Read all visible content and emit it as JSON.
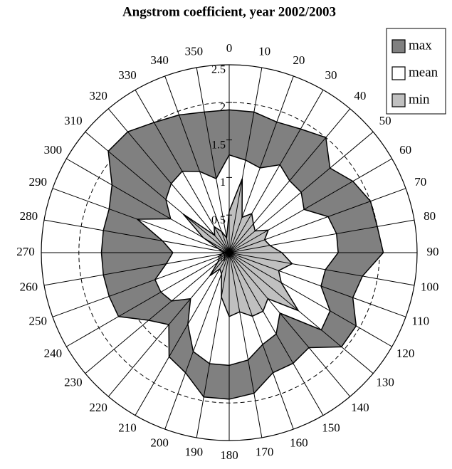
{
  "chart_data": {
    "type": "radar",
    "title": "Angstrom coefficient, year 2002/2003",
    "x": [
      0,
      10,
      20,
      30,
      40,
      50,
      60,
      70,
      80,
      90,
      100,
      110,
      120,
      130,
      140,
      150,
      160,
      170,
      180,
      190,
      200,
      210,
      220,
      230,
      240,
      250,
      260,
      270,
      280,
      290,
      300,
      310,
      320,
      330,
      340,
      350
    ],
    "series": [
      {
        "name": "max",
        "color": "#808080",
        "values": [
          1.9,
          1.9,
          1.85,
          1.9,
          2.0,
          1.75,
          1.9,
          2.0,
          2.0,
          2.05,
          1.8,
          1.75,
          1.95,
          1.95,
          1.65,
          1.7,
          1.7,
          1.9,
          1.95,
          1.95,
          1.7,
          1.6,
          1.25,
          1.4,
          1.7,
          1.7,
          1.7,
          1.7,
          1.7,
          1.7,
          1.8,
          2.1,
          2.1,
          2.0,
          1.95,
          1.9
        ]
      },
      {
        "name": "mean",
        "color": "#ffffff",
        "values": [
          1.3,
          1.25,
          1.2,
          1.35,
          1.25,
          1.25,
          1.15,
          1.4,
          1.45,
          1.45,
          1.3,
          1.3,
          1.55,
          1.6,
          1.05,
          1.25,
          1.3,
          1.45,
          1.5,
          1.5,
          1.4,
          1.1,
          0.8,
          1.0,
          1.05,
          1.05,
          0.85,
          0.75,
          0.9,
          1.3,
          0.9,
          1.1,
          1.2,
          1.25,
          1.15,
          1.0
        ]
      },
      {
        "name": "min",
        "color": "#c0c0c0",
        "values": [
          0.55,
          1.0,
          0.5,
          0.6,
          0.5,
          0.45,
          0.6,
          0.5,
          0.55,
          0.7,
          0.85,
          0.7,
          0.8,
          1.2,
          0.8,
          0.9,
          0.9,
          0.8,
          0.85,
          0.6,
          0.3,
          0.25,
          0.4,
          0.2,
          0.15,
          0.15,
          0.1,
          0.05,
          0.1,
          0.15,
          0.4,
          0.8,
          0.3,
          0.4,
          0.3,
          0.2
        ]
      }
    ],
    "ylim": [
      0,
      2.5
    ],
    "yticks": [
      0,
      0.5,
      1,
      1.5,
      2,
      2.5
    ],
    "grid": true,
    "legend": "top-right"
  }
}
